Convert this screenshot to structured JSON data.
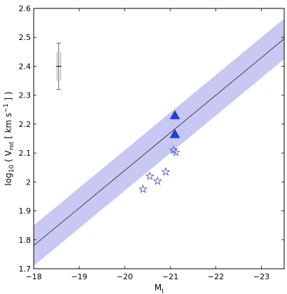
{
  "chart_data": {
    "type": "scatter",
    "xlabel": "M",
    "xlabel_sub": "I",
    "ylabel_parts": {
      "a": "log",
      "a_sub": "10",
      "b": " ( V",
      "b_sub": "rot",
      "c": " [ km s",
      "c_sup": "−1",
      "d": " ] )"
    },
    "xlim": [
      -18,
      -23.5
    ],
    "ylim": [
      1.7,
      2.6
    ],
    "x_reversed": true,
    "grid": false,
    "xticks": [
      -18,
      -19,
      -20,
      -21,
      -22,
      -23
    ],
    "xtick_labels": [
      "−18",
      "−19",
      "−20",
      "−21",
      "−22",
      "−23"
    ],
    "yticks": [
      1.7,
      1.8,
      1.9,
      2.0,
      2.1,
      2.2,
      2.3,
      2.4,
      2.5,
      2.6
    ],
    "ytick_labels": [
      "1.7",
      "1.8",
      "1.9",
      "2",
      "2.1",
      "2.2",
      "2.3",
      "2.4",
      "2.5",
      "2.6"
    ],
    "fit_line": {
      "x": [
        -18,
        -23.5
      ],
      "y": [
        1.78,
        2.495
      ]
    },
    "band_halfwidth": 0.07,
    "band_color": "#c8c8f5",
    "triangles": {
      "x": [
        -21.1,
        -21.1
      ],
      "y": [
        2.23,
        2.165
      ],
      "color": "#1f3fd6"
    },
    "stars": {
      "x": [
        -20.4,
        -20.55,
        -20.72,
        -20.9,
        -21.07,
        -21.12
      ],
      "y": [
        1.975,
        2.02,
        2.003,
        2.035,
        2.11,
        2.102
      ],
      "color": "#4a5ad0"
    },
    "error_bar": {
      "x": -18.55,
      "y": 2.4,
      "err_outer": 0.08,
      "err_inner": 0.05
    }
  }
}
